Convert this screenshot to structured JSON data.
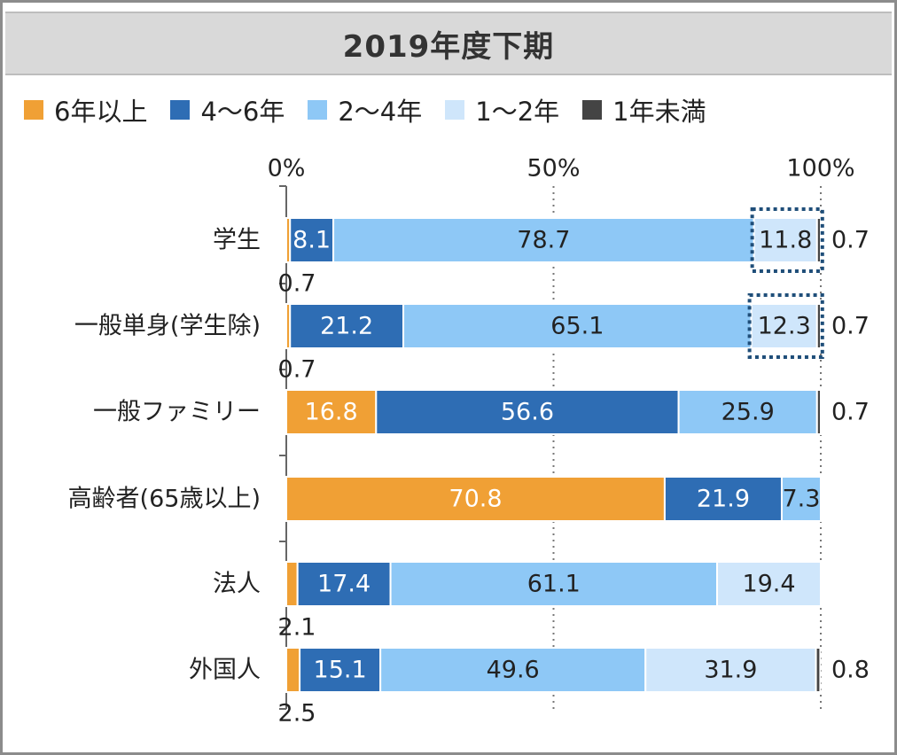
{
  "chart_data": {
    "type": "bar",
    "orientation": "horizontal",
    "stacked": true,
    "title": "2019年度下期",
    "xlim": [
      0,
      100
    ],
    "x_ticks": [
      "0%",
      "50%",
      "100%"
    ],
    "x_tick_values": [
      0,
      50,
      100
    ],
    "categories": [
      "学生",
      "一般単身(学生除)",
      "一般ファミリー",
      "高齢者(65歳以上)",
      "法人",
      "外国人"
    ],
    "series": [
      {
        "name": "6年以上",
        "color": "#f0a035",
        "values": [
          0.7,
          0.7,
          16.8,
          70.8,
          2.1,
          2.5
        ],
        "labels": [
          "0.7",
          "0.7",
          "16.8",
          "70.8",
          "2.1",
          "2.5"
        ]
      },
      {
        "name": "4〜6年",
        "color": "#2e6db4",
        "values": [
          8.1,
          21.2,
          56.6,
          21.9,
          17.4,
          15.1
        ],
        "labels": [
          "8.1",
          "21.2",
          "56.6",
          "21.9",
          "17.4",
          "15.1"
        ]
      },
      {
        "name": "2〜4年",
        "color": "#8ec8f6",
        "values": [
          78.7,
          65.1,
          25.9,
          7.3,
          61.1,
          49.6
        ],
        "labels": [
          "78.7",
          "65.1",
          "25.9",
          "7.3",
          "61.1",
          "49.6"
        ]
      },
      {
        "name": "1〜2年",
        "color": "#cfe6fb",
        "values": [
          11.8,
          12.3,
          0,
          0,
          19.4,
          31.9
        ],
        "labels": [
          "11.8",
          "12.3",
          "",
          "",
          "19.4",
          "31.9"
        ]
      },
      {
        "name": "1年未満",
        "color": "#444444",
        "values": [
          0.7,
          0.7,
          0.7,
          0,
          0,
          0.8
        ],
        "labels": [
          "0.7",
          "0.7",
          "0.7",
          "",
          "",
          "0.8"
        ]
      }
    ],
    "highlighted": [
      {
        "category": "学生",
        "series": "1〜2年"
      },
      {
        "category": "一般単身(学生除)",
        "series": "1〜2年"
      }
    ],
    "legend": "top"
  }
}
